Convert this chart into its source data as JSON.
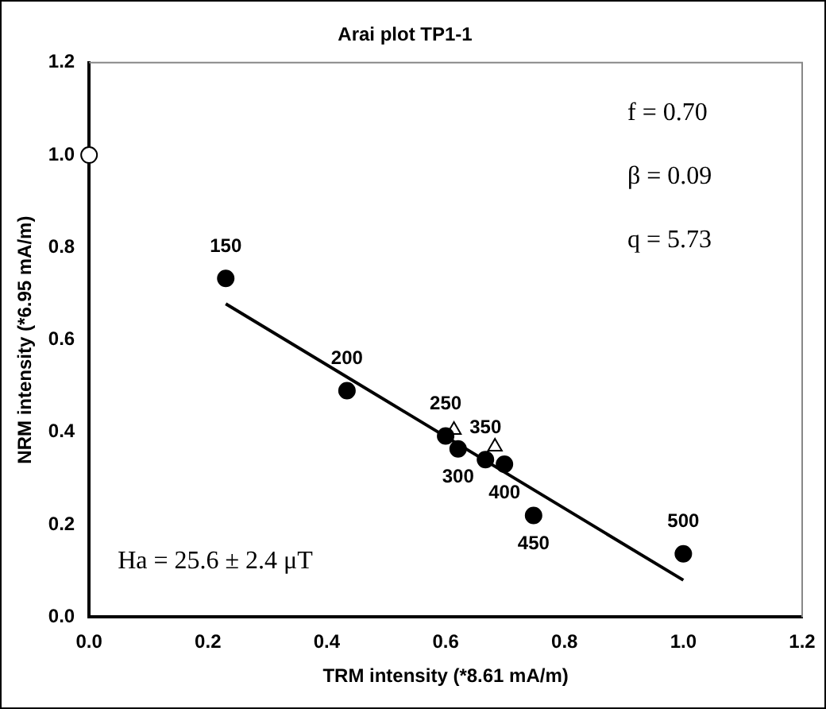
{
  "chart_data": {
    "type": "scatter",
    "title": "Arai plot TP1-1",
    "xlabel": "TRM intensity (*8.61 mA/m)",
    "ylabel": "NRM intensity (*6.95 mA/m)",
    "series": [
      {
        "type": "scatter",
        "color": "#000000",
        "marker": "circle",
        "x": [
          0.23,
          0.434,
          0.6,
          0.621,
          0.667,
          0.699,
          0.748,
          1.0
        ],
        "values": [
          0.733,
          0.49,
          0.392,
          0.364,
          0.341,
          0.331,
          0.22,
          0.137
        ]
      },
      {
        "type": "scatter",
        "color": "#ffffff",
        "marker": "circle",
        "x": [
          0.0
        ],
        "values": [
          1.0
        ]
      },
      {
        "type": "scatter",
        "color": "#ffffff",
        "marker": "triangle",
        "x": [
          0.614,
          0.683
        ],
        "values": [
          0.405,
          0.369
        ]
      },
      {
        "type": "line",
        "color": "#000000",
        "marker": "none",
        "x": [
          0.23,
          1.0
        ],
        "values": [
          0.678,
          0.08
        ]
      }
    ],
    "xlim": [
      0,
      1.2
    ],
    "ylim": [
      0,
      1.2
    ],
    "xticks": [
      {
        "value": 0,
        "label": "0.0"
      },
      {
        "value": 0.2,
        "label": "0.2"
      },
      {
        "value": 0.4,
        "label": "0.4"
      },
      {
        "value": 0.6,
        "label": "0.6"
      },
      {
        "value": 0.8,
        "label": "0.8"
      },
      {
        "value": 1.0,
        "label": "1.0"
      },
      {
        "value": 1.2,
        "label": "1.2"
      }
    ],
    "yticks": [
      {
        "value": 0,
        "label": "0.0"
      },
      {
        "value": 0.2,
        "label": "0.2"
      },
      {
        "value": 0.4,
        "label": "0.4"
      },
      {
        "value": 0.6,
        "label": "0.6"
      },
      {
        "value": 0.8,
        "label": "0.8"
      },
      {
        "value": 1.0,
        "label": "1.0"
      },
      {
        "value": 1.2,
        "label": "1.2"
      }
    ],
    "grid": false,
    "legend": false,
    "annotations": [
      {
        "text": "150",
        "x": 0.23,
        "y": 0.733
      },
      {
        "text": "200",
        "x": 0.434,
        "y": 0.49
      },
      {
        "text": "250",
        "x": 0.6,
        "y": 0.392
      },
      {
        "text": "300",
        "x": 0.621,
        "y": 0.364
      },
      {
        "text": "350",
        "x": 0.667,
        "y": 0.341
      },
      {
        "text": "400",
        "x": 0.699,
        "y": 0.331
      },
      {
        "text": "450",
        "x": 0.748,
        "y": 0.22
      },
      {
        "text": "500",
        "x": 1.0,
        "y": 0.137
      },
      "f = 0.70",
      "β = 0.09",
      "q = 5.73",
      "Ha = 25.6 ± 2.4 μT"
    ]
  }
}
